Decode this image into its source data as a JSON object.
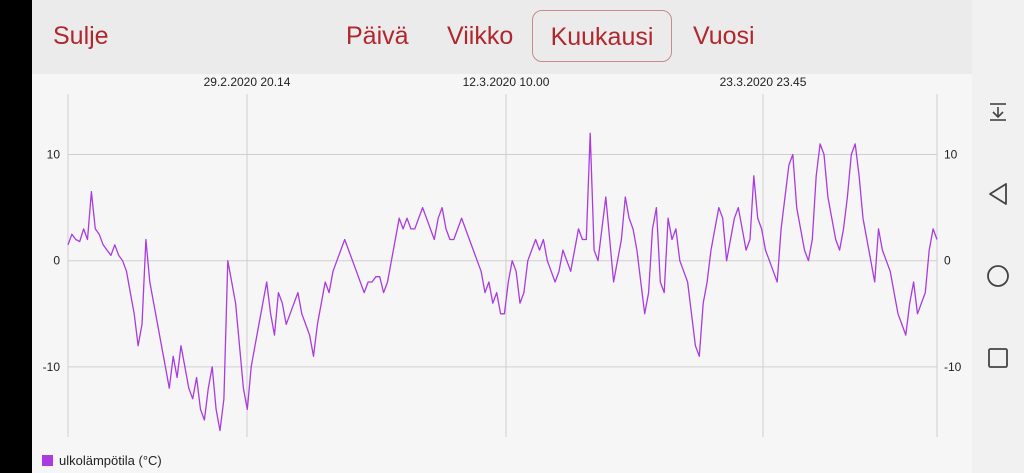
{
  "header": {
    "close_label": "Sulje",
    "tabs": [
      {
        "label": "Päivä",
        "selected": false
      },
      {
        "label": "Viikko",
        "selected": false
      },
      {
        "label": "Kuukausi",
        "selected": true
      },
      {
        "label": "Vuosi",
        "selected": false
      }
    ]
  },
  "colors": {
    "accent": "#b0272d",
    "series": "#a93be0",
    "grid": "#cfcfcf",
    "header_bg": "#ebebeb",
    "chart_bg": "#f6f6f6"
  },
  "system_nav": {
    "icons": [
      "notification-pulldown-icon",
      "back-icon",
      "home-icon",
      "recents-icon"
    ]
  },
  "chart_data": {
    "type": "line",
    "title": "",
    "xlabel": "",
    "ylabel": "",
    "x_tick_labels": [
      "29.2.2020 20.14",
      "12.3.2020 10.00",
      "23.3.2020 23.45"
    ],
    "y_ticks": [
      -10,
      0,
      10
    ],
    "y_tick_labels": [
      "-10",
      "0",
      "10"
    ],
    "ylim": [
      -16.6,
      15.7
    ],
    "grid": true,
    "legend_position": "bottom-left",
    "series": [
      {
        "name": "ulkolämpötila (°C)",
        "values": [
          1.5,
          2.5,
          2,
          1.8,
          3,
          2,
          6.5,
          3,
          2.5,
          1.5,
          1,
          0.5,
          1.5,
          0.5,
          0,
          -1,
          -3,
          -5,
          -8,
          -6,
          2,
          -2,
          -4,
          -6,
          -8,
          -10,
          -12,
          -9,
          -11,
          -8,
          -10,
          -12,
          -13,
          -11,
          -14,
          -15,
          -12,
          -10,
          -14,
          -16,
          -13,
          0,
          -2,
          -4,
          -8,
          -12,
          -14,
          -10,
          -8,
          -6,
          -4,
          -2,
          -5,
          -7,
          -3,
          -4,
          -6,
          -5,
          -4,
          -3,
          -5,
          -6,
          -7,
          -9,
          -6,
          -4,
          -2,
          -3,
          -1,
          0,
          1,
          2,
          1,
          0,
          -1,
          -2,
          -3,
          -2,
          -2,
          -1.5,
          -1.5,
          -3,
          -2,
          0,
          2,
          4,
          3,
          4,
          3,
          3,
          4,
          5,
          4,
          3,
          2,
          4,
          5,
          3,
          2,
          2,
          3,
          4,
          3,
          2,
          1,
          0,
          -1,
          -3,
          -2,
          -4,
          -3,
          -5,
          -5,
          -2,
          0,
          -1,
          -4,
          -3,
          0,
          1,
          2,
          1,
          2,
          0,
          -1,
          -2,
          -1,
          1,
          0,
          -1,
          1,
          3,
          2,
          2,
          12,
          1,
          0,
          3,
          6,
          2,
          -2,
          0,
          2,
          6,
          4,
          3,
          1,
          -2,
          -5,
          -3,
          3,
          5,
          -2,
          -3,
          4,
          2,
          3,
          0,
          -1,
          -2,
          -5,
          -8,
          -9,
          -4,
          -2,
          1,
          3,
          5,
          4,
          0,
          2,
          4,
          5,
          3,
          1,
          2,
          8,
          4,
          3,
          1,
          0,
          -1,
          -2,
          3,
          6,
          9,
          10,
          5,
          3,
          1,
          0,
          2,
          8,
          11,
          10,
          6,
          4,
          2,
          1,
          3,
          6,
          10,
          11,
          8,
          4,
          2,
          0,
          -2,
          3,
          1,
          0,
          -1,
          -3,
          -5,
          -6,
          -7,
          -4,
          -2,
          -5,
          -4,
          -3,
          1,
          3,
          2
        ],
        "color": "#a93be0"
      }
    ]
  }
}
